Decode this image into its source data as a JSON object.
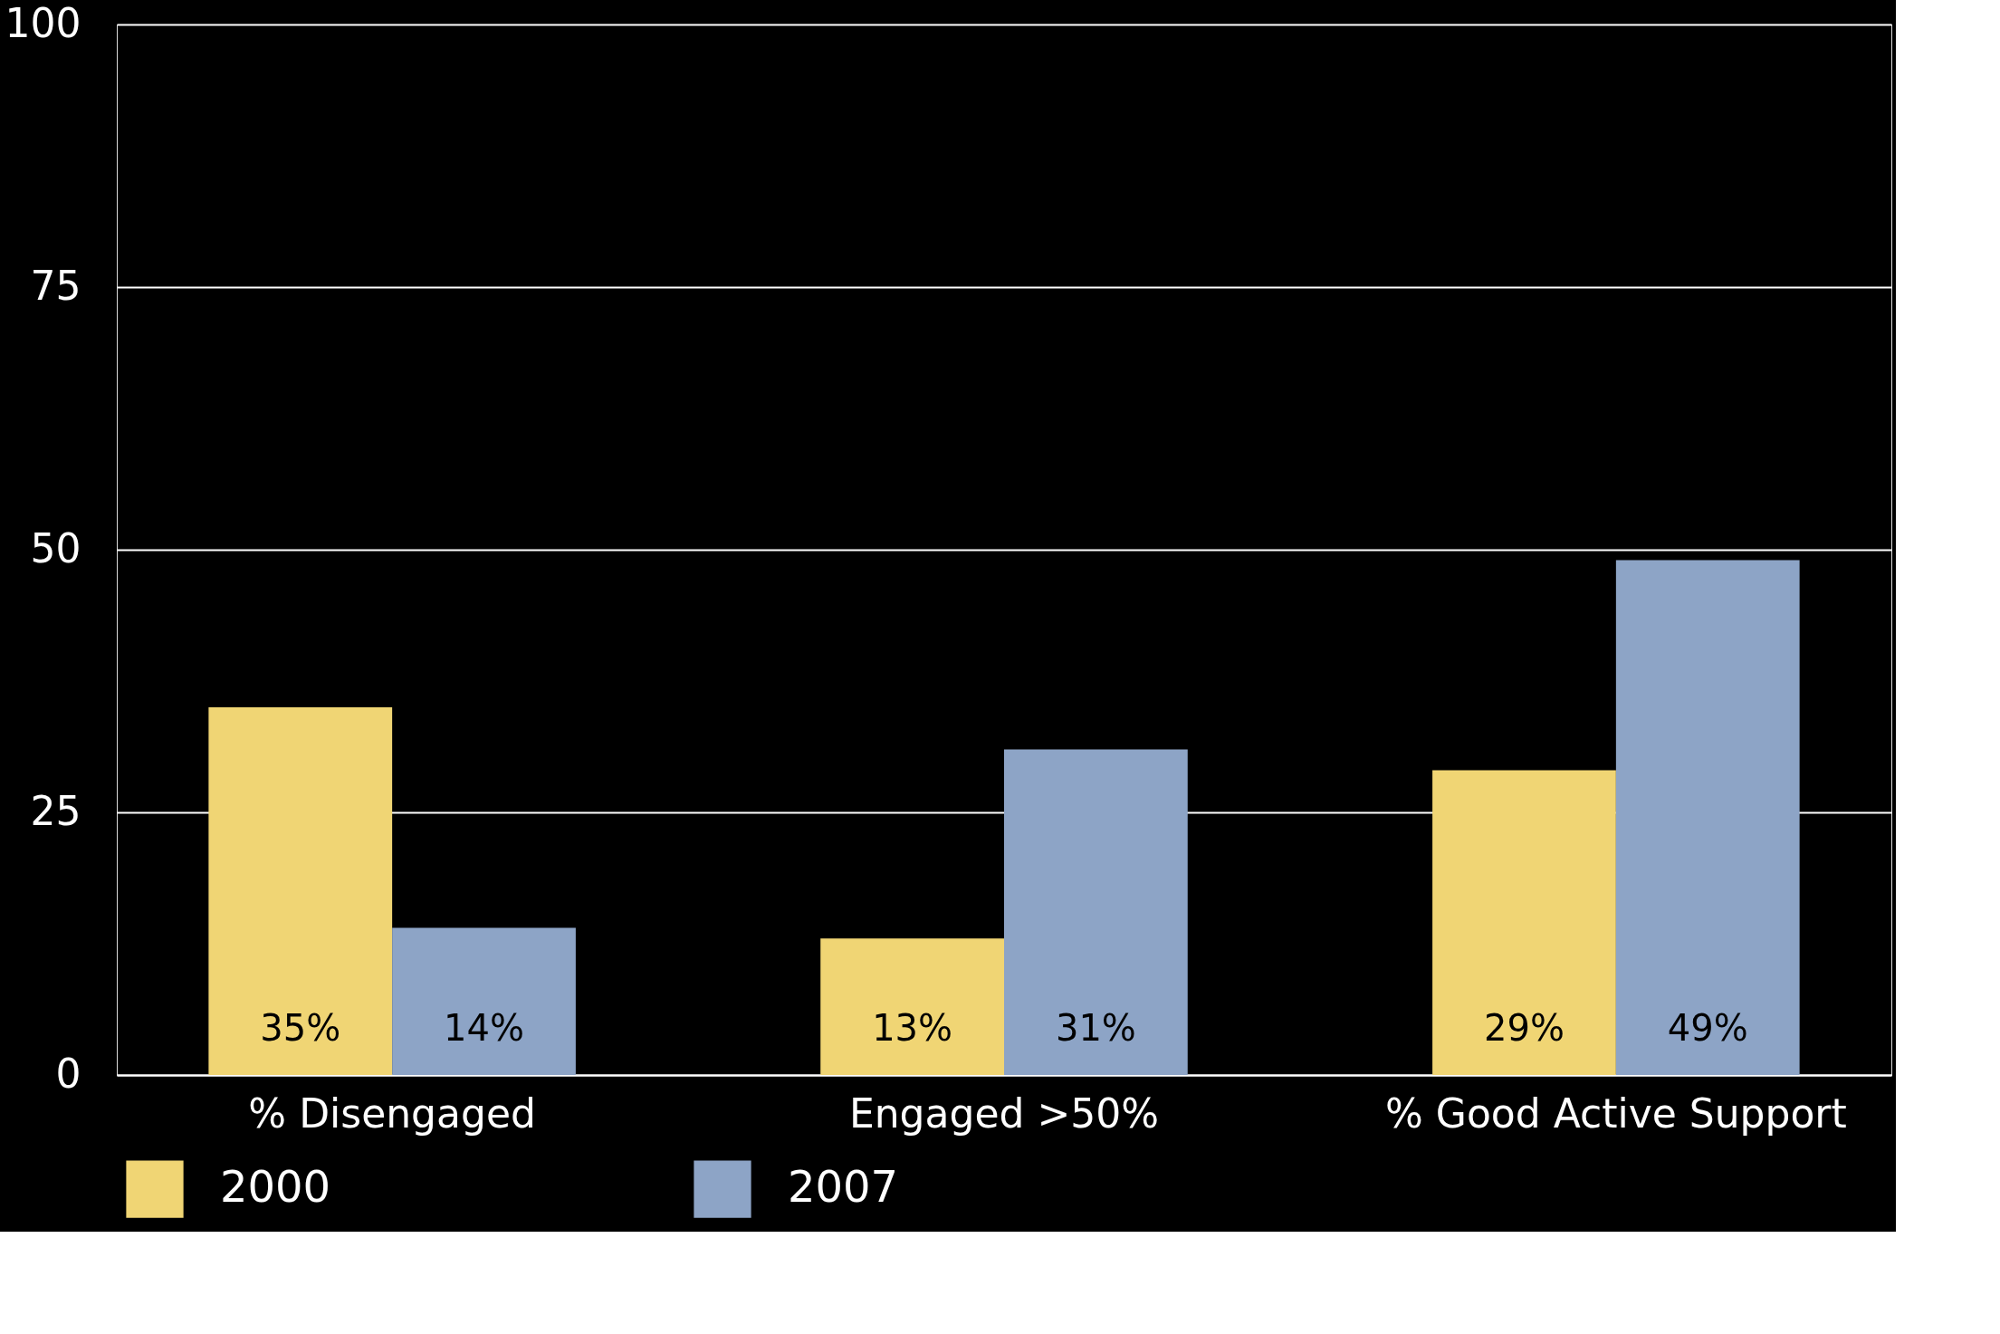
{
  "chart_data": {
    "type": "bar",
    "categories": [
      "%  Disengaged",
      "Engaged >50%",
      "% Good Active Support"
    ],
    "series": [
      {
        "name": "2000",
        "color": "#f0d574",
        "values": [
          35,
          13,
          29
        ],
        "value_labels": [
          "35%",
          "13%",
          "29%"
        ]
      },
      {
        "name": "2007",
        "color": "#8da4c6",
        "values": [
          14,
          31,
          49
        ],
        "value_labels": [
          "14%",
          "31%",
          "49%"
        ]
      }
    ],
    "ylim": [
      0,
      100
    ],
    "yticks": [
      0,
      25,
      50,
      75,
      100
    ],
    "grid": "y",
    "legend": "bottom"
  }
}
